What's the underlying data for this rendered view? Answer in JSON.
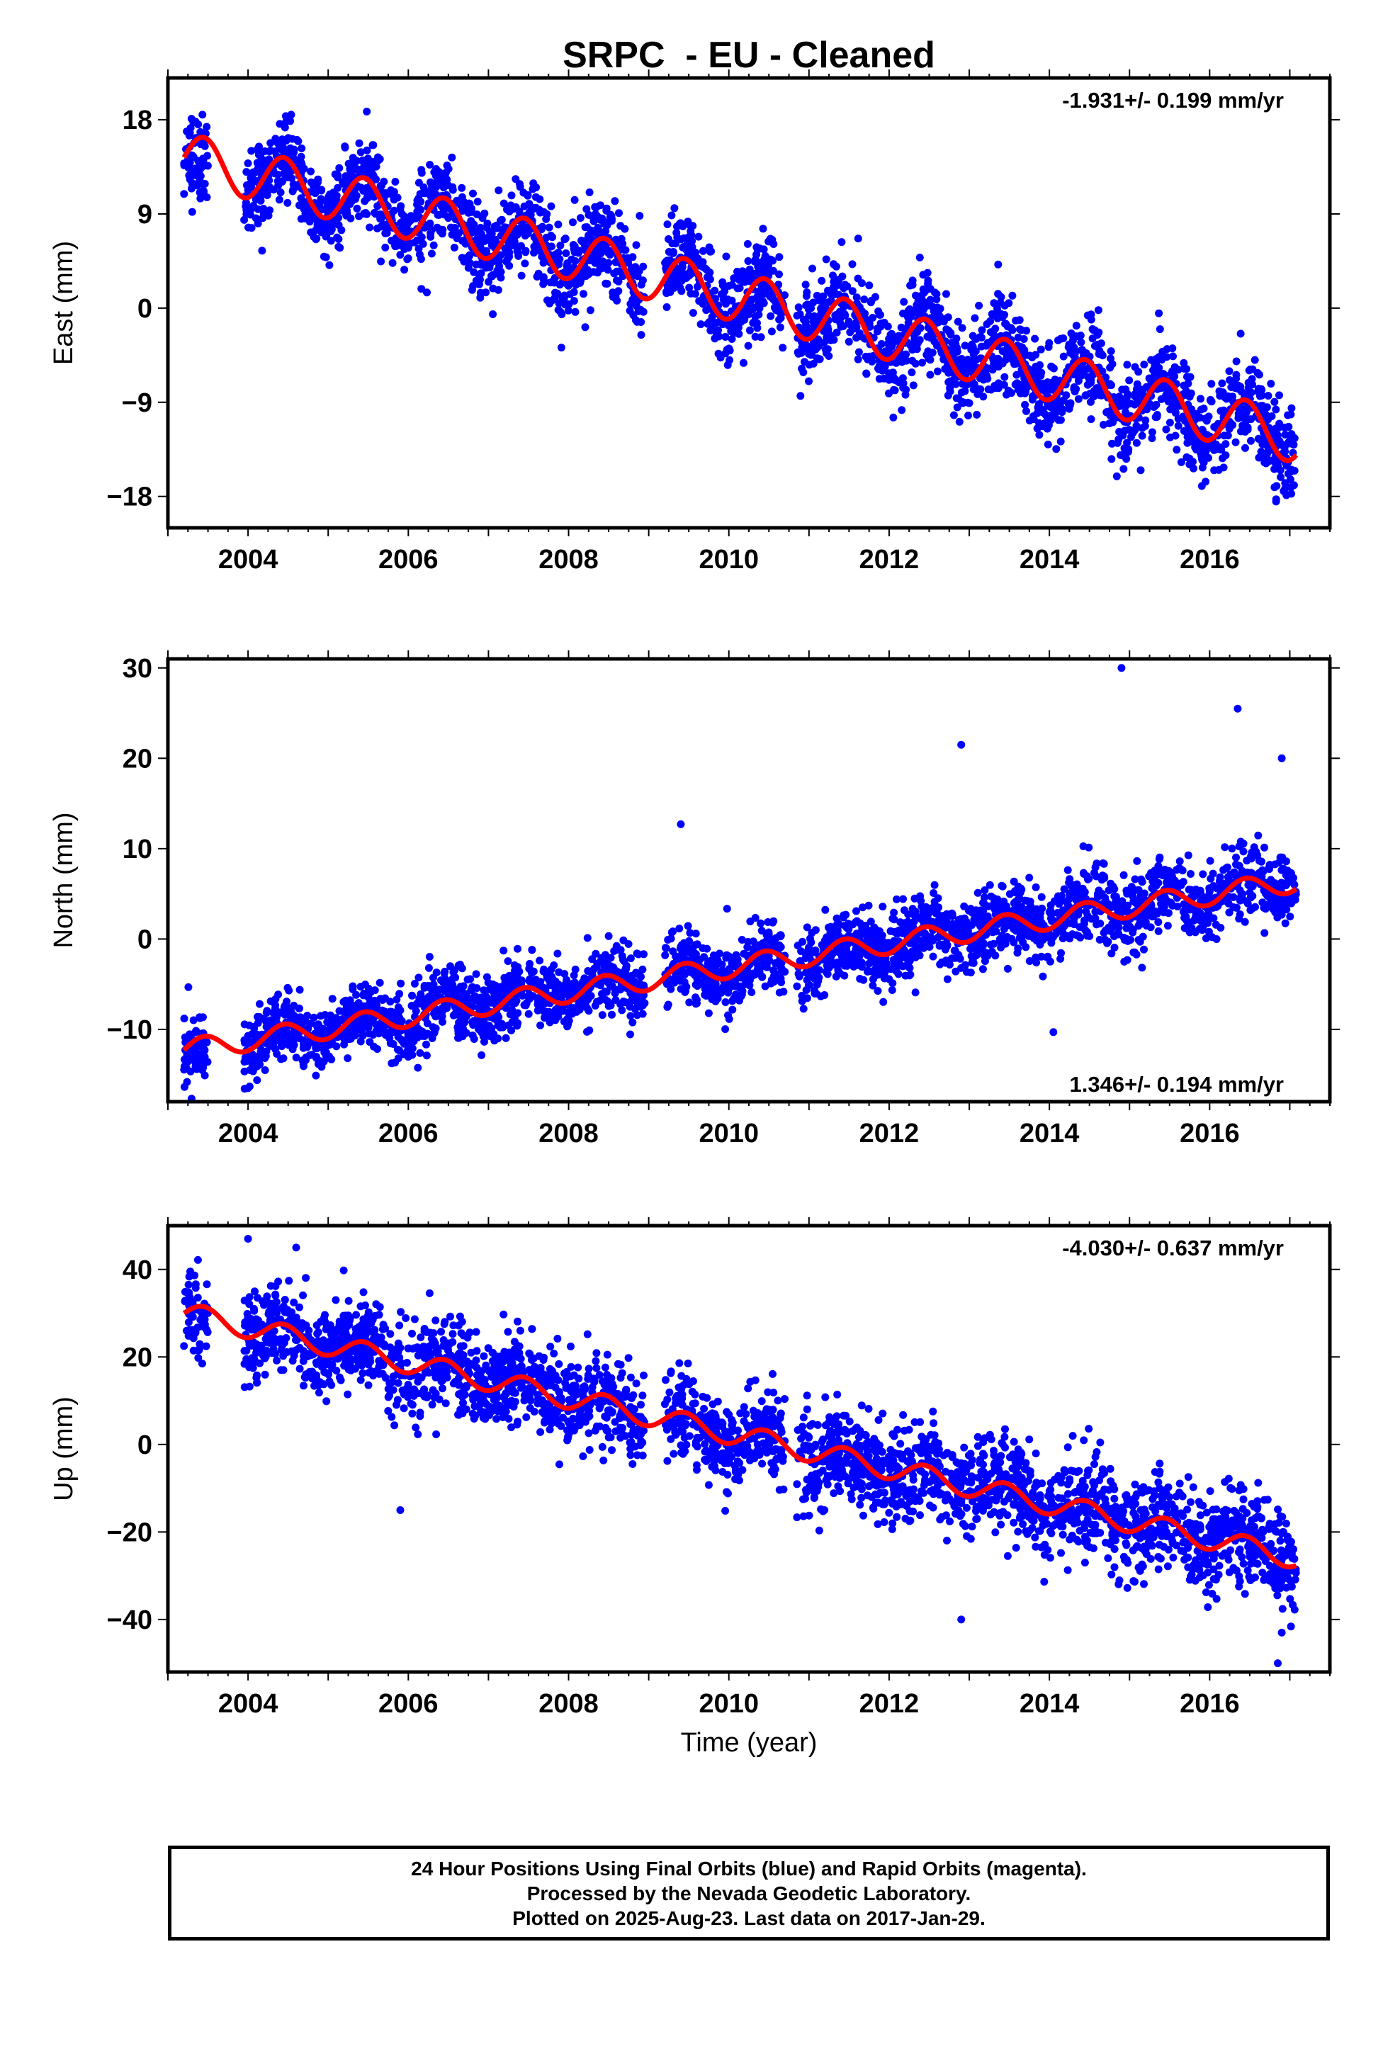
{
  "title": "SRPC  - EU - Cleaned",
  "xlabel": "Time (year)",
  "footer": {
    "line1": "24 Hour Positions Using Final Orbits (blue) and Rapid Orbits (magenta).",
    "line2": "Processed by the Nevada Geodetic Laboratory.",
    "line3": "Plotted on 2025-Aug-23. Last data on 2017-Jan-29."
  },
  "colors": {
    "points": "#0000ff",
    "model": "#ff0000",
    "axes": "#000000"
  },
  "chart_data": [
    {
      "type": "scatter",
      "ylabel": "East (mm)",
      "rate_label": "-1.931+/- 0.199 mm/yr",
      "rate_position": "top-right",
      "xlim": [
        2003.0,
        2017.5
      ],
      "ylim": [
        -21,
        22
      ],
      "xticks": [
        2004,
        2006,
        2008,
        2010,
        2012,
        2014,
        2016
      ],
      "yticks": [
        -18,
        -9,
        0,
        9,
        18
      ],
      "ytick_labels": [
        "−18",
        "−9",
        "0",
        "9",
        "18"
      ],
      "grid": false,
      "series": [
        {
          "style": "points",
          "description_free": true,
          "clusters": [
            {
              "x": [
                2003.2,
                2003.5
              ],
              "center": 14.5,
              "spread": 2.2
            },
            {
              "x": [
                2003.95,
                2010.7
              ],
              "center": null,
              "spread": 2.0
            },
            {
              "x": [
                2010.85,
                2017.08
              ],
              "center": null,
              "spread": 2.2
            }
          ],
          "gap": [
            2008.95,
            2009.2
          ]
        },
        {
          "style": "line",
          "trend_start": 14.4,
          "rate": -1.931,
          "annual_amplitude": 2.4
        }
      ]
    },
    {
      "type": "scatter",
      "ylabel": "North (mm)",
      "rate_label": "1.346+/- 0.194 mm/yr",
      "rate_position": "bottom-right",
      "xlim": [
        2003.0,
        2017.5
      ],
      "ylim": [
        -18,
        31
      ],
      "xticks": [
        2004,
        2006,
        2008,
        2010,
        2012,
        2014,
        2016
      ],
      "yticks": [
        -10,
        0,
        10,
        20,
        30
      ],
      "ytick_labels": [
        "−10",
        "0",
        "10",
        "20",
        "30"
      ],
      "grid": false,
      "series": [
        {
          "style": "points",
          "clusters": [
            {
              "x": [
                2003.2,
                2003.5
              ],
              "center": -12.5,
              "spread": 2.0
            },
            {
              "x": [
                2003.95,
                2010.7
              ],
              "center": null,
              "spread": 1.8
            },
            {
              "x": [
                2010.85,
                2017.08
              ],
              "center": null,
              "spread": 2.0
            }
          ],
          "gap": [
            2008.95,
            2009.2
          ],
          "outliers": [
            [
              2014.9,
              30
            ],
            [
              2016.35,
              25.5
            ],
            [
              2012.9,
              21.5
            ],
            [
              2016.9,
              20
            ],
            [
              2009.4,
              12.7
            ],
            [
              2014.05,
              -10.3
            ],
            [
              2004.0,
              -16.5
            ]
          ]
        },
        {
          "style": "line",
          "trend_start": -12.3,
          "rate": 1.346,
          "annual_amplitude": 1.2
        }
      ]
    },
    {
      "type": "scatter",
      "ylabel": "Up (mm)",
      "rate_label": "-4.030+/- 0.637 mm/yr",
      "rate_position": "top-right",
      "xlim": [
        2003.0,
        2017.5
      ],
      "ylim": [
        -52,
        50
      ],
      "xticks": [
        2004,
        2006,
        2008,
        2010,
        2012,
        2014,
        2016
      ],
      "yticks": [
        -40,
        -20,
        0,
        20,
        40
      ],
      "ytick_labels": [
        "−40",
        "−20",
        "0",
        "20",
        "40"
      ],
      "grid": false,
      "series": [
        {
          "style": "points",
          "clusters": [
            {
              "x": [
                2003.2,
                2003.5
              ],
              "center": 29,
              "spread": 5.0
            },
            {
              "x": [
                2003.95,
                2010.7
              ],
              "center": null,
              "spread": 5.0
            },
            {
              "x": [
                2010.85,
                2017.08
              ],
              "center": null,
              "spread": 5.5
            }
          ],
          "gap": [
            2008.95,
            2009.2
          ],
          "outliers": [
            [
              2004.0,
              47
            ],
            [
              2004.6,
              45
            ],
            [
              2005.9,
              -15
            ],
            [
              2012.9,
              -40
            ],
            [
              2016.85,
              -50
            ],
            [
              2016.9,
              -43
            ]
          ]
        },
        {
          "style": "line",
          "trend_start": 30,
          "rate": -4.03,
          "annual_amplitude": 2.5
        }
      ]
    }
  ]
}
